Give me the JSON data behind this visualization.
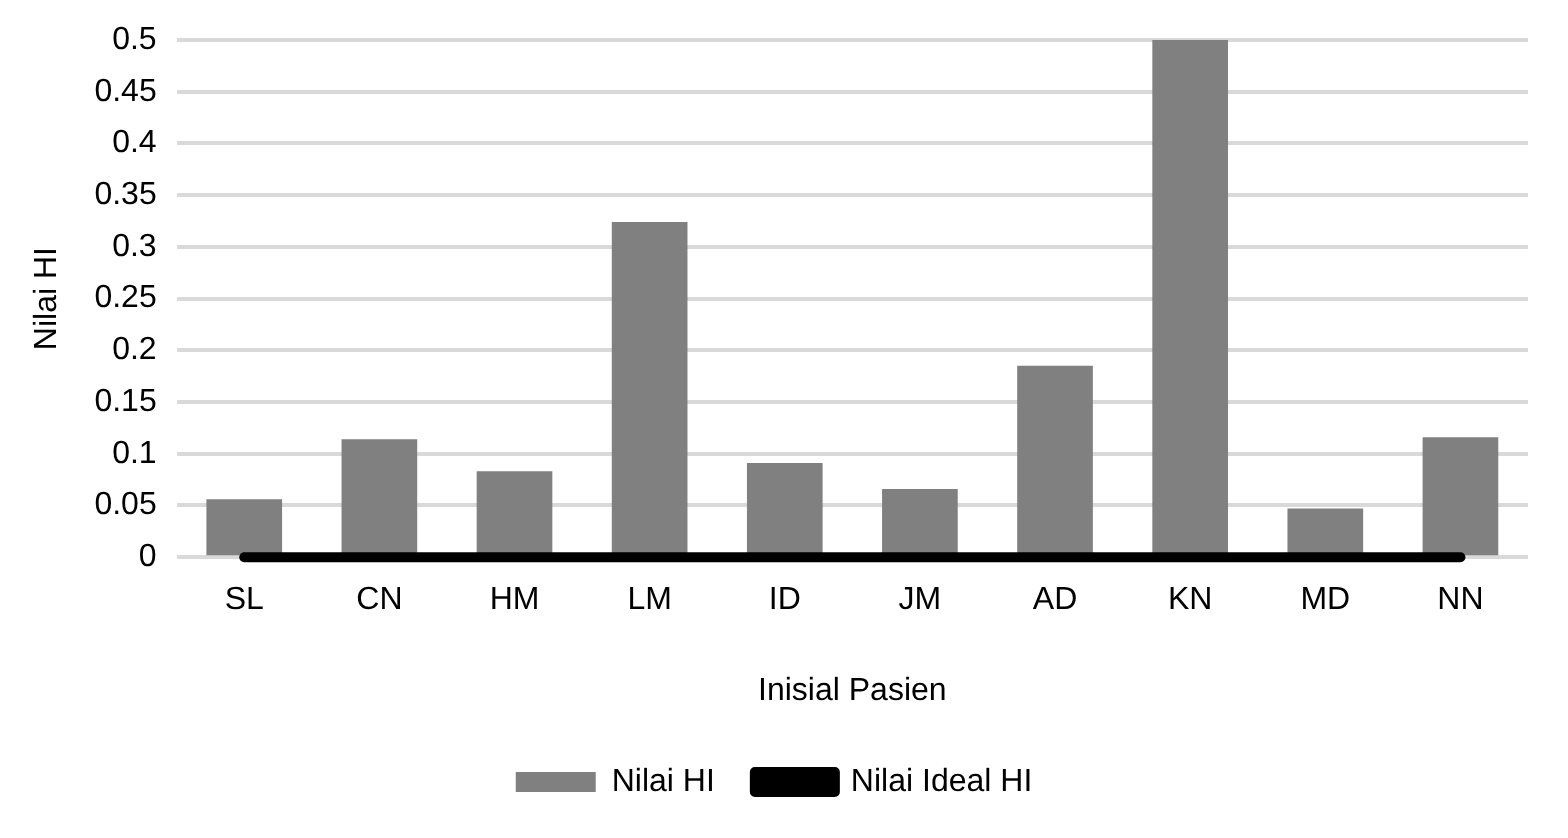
{
  "chart_data": {
    "type": "bar",
    "xlabel": "Inisial Pasien",
    "ylabel": "Nilai HI",
    "categories": [
      "SL",
      "CN",
      "HM",
      "LM",
      "ID",
      "JM",
      "AD",
      "KN",
      "MD",
      "NN"
    ],
    "series": [
      {
        "name": "Nilai HI",
        "color": "#808080",
        "values": [
          0.056,
          0.114,
          0.083,
          0.324,
          0.091,
          0.066,
          0.185,
          0.5,
          0.047,
          0.116
        ]
      },
      {
        "name": "Nilai Ideal HI",
        "type": "line",
        "color": "#000000",
        "values": [
          0,
          0,
          0,
          0,
          0,
          0,
          0,
          0,
          0,
          0
        ]
      }
    ],
    "ylim": [
      0,
      0.5
    ],
    "yticks": [
      0,
      0.05,
      0.1,
      0.15,
      0.2,
      0.25,
      0.3,
      0.35,
      0.4,
      0.45,
      0.5
    ],
    "grid": "y",
    "legend": "bottom",
    "marker": "none",
    "line_style": "solid"
  }
}
